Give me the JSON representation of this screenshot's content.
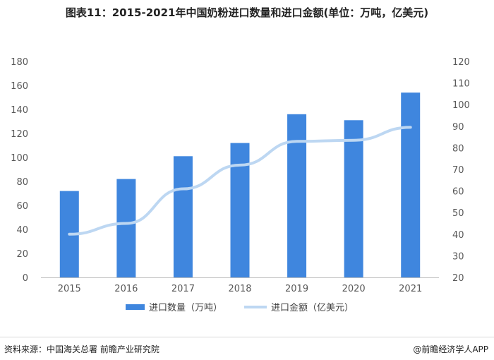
{
  "title": "图表11：2015-2021年中国奶粉进口数量和进口金额(单位：万吨，亿美元)",
  "footer": {
    "source": "资料来源：中国海关总署 前瞻产业研究院",
    "brand": "@前瞻经济学人APP"
  },
  "colors": {
    "bar": "#3f86de",
    "line": "#bdd7f2",
    "axis": "#bfbfbf",
    "tick_text": "#595959"
  },
  "chart_data": {
    "type": "bar",
    "categories": [
      "2015",
      "2016",
      "2017",
      "2018",
      "2019",
      "2020",
      "2021"
    ],
    "series": [
      {
        "name": "进口数量（万吨）",
        "type": "bar",
        "axis": "left",
        "values": [
          72,
          82,
          101,
          112,
          136,
          131,
          154
        ]
      },
      {
        "name": "进口金额（亿美元）",
        "type": "line",
        "axis": "right",
        "values": [
          40,
          45,
          61,
          72,
          83,
          83.5,
          89.5
        ]
      }
    ],
    "y_left": {
      "min": 0,
      "max": 180,
      "ticks": [
        "0",
        "20",
        "40",
        "60",
        "80",
        "100",
        "120",
        "140",
        "160",
        "180"
      ]
    },
    "y_right": {
      "min": 20,
      "max": 120,
      "ticks": [
        "20",
        "30",
        "40",
        "50",
        "60",
        "70",
        "80",
        "90",
        "100",
        "110",
        "120"
      ]
    },
    "grid": false,
    "legend_position": "bottom"
  }
}
